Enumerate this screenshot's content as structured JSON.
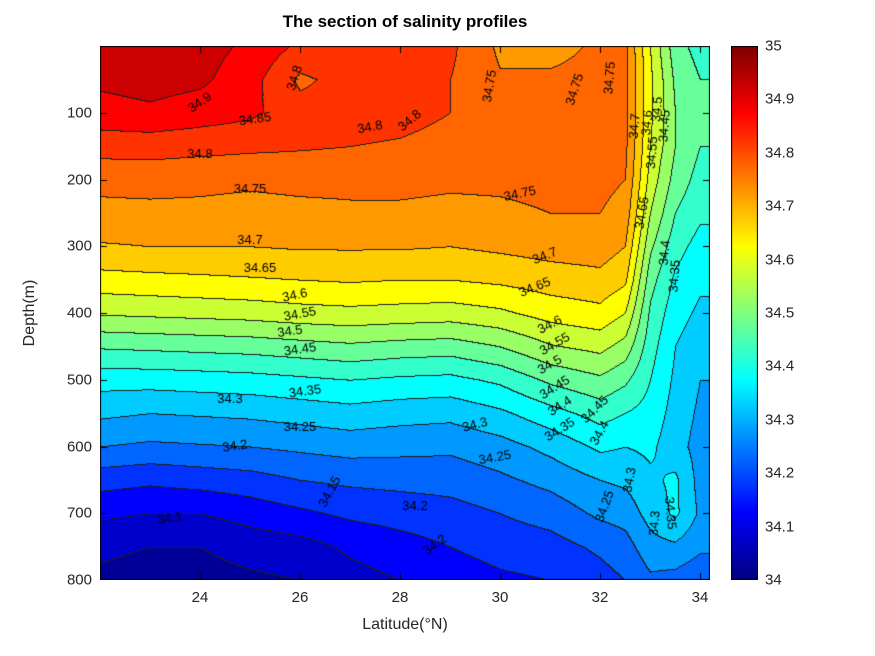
{
  "chart_data": {
    "type": "heatmap",
    "subtype": "filled-contour-section",
    "title": "The section of salinity profiles",
    "xlabel": "Latitude(°N)",
    "ylabel": "Depth(m)",
    "x_range": [
      22,
      34.2
    ],
    "y_range": [
      0,
      800
    ],
    "x_ticks": [
      24,
      26,
      28,
      30,
      32,
      34
    ],
    "y_ticks": [
      100,
      200,
      300,
      400,
      500,
      600,
      700,
      800
    ],
    "colormap": "jet",
    "contour_interval": 0.05,
    "colorbar": {
      "min": 34,
      "max": 35,
      "tick_labels": [
        "34",
        "34.1",
        "34.2",
        "34.3",
        "34.4",
        "34.5",
        "34.6",
        "34.7",
        "34.8",
        "34.9",
        "35"
      ]
    },
    "grid": {
      "lats": [
        22,
        23,
        24,
        25,
        26,
        27,
        28,
        29,
        30,
        31,
        32,
        32.5,
        33,
        33.5,
        34
      ],
      "depths": [
        0,
        50,
        100,
        150,
        200,
        250,
        300,
        350,
        400,
        450,
        500,
        550,
        600,
        650,
        700,
        750,
        800
      ],
      "salinity": [
        [
          34.91,
          34.93,
          34.92,
          34.89,
          34.84,
          34.85,
          34.84,
          34.81,
          34.74,
          34.74,
          34.755,
          34.76,
          34.6,
          34.47,
          34.43
        ],
        [
          34.91,
          34.92,
          34.91,
          34.87,
          34.79,
          34.82,
          34.83,
          34.8,
          34.755,
          34.755,
          34.76,
          34.76,
          34.61,
          34.49,
          34.45
        ],
        [
          34.88,
          34.89,
          34.875,
          34.86,
          34.82,
          34.82,
          34.815,
          34.8,
          34.785,
          34.775,
          34.77,
          34.76,
          34.61,
          34.5,
          34.46
        ],
        [
          34.82,
          34.82,
          34.815,
          34.81,
          34.805,
          34.8,
          34.795,
          34.785,
          34.775,
          34.775,
          34.77,
          34.76,
          34.6,
          34.5,
          34.45
        ],
        [
          34.765,
          34.77,
          34.765,
          34.76,
          34.765,
          34.765,
          34.765,
          34.76,
          34.76,
          34.765,
          34.765,
          34.75,
          34.58,
          34.48,
          34.43
        ],
        [
          34.735,
          34.735,
          34.735,
          34.73,
          34.735,
          34.74,
          34.74,
          34.735,
          34.74,
          34.75,
          34.75,
          34.73,
          34.55,
          34.45,
          34.41
        ],
        [
          34.695,
          34.7,
          34.7,
          34.7,
          34.705,
          34.705,
          34.705,
          34.7,
          34.71,
          34.72,
          34.725,
          34.7,
          34.51,
          34.42,
          34.38
        ],
        [
          34.63,
          34.635,
          34.64,
          34.645,
          34.65,
          34.655,
          34.65,
          34.65,
          34.66,
          34.675,
          34.685,
          34.66,
          34.47,
          34.39,
          34.36
        ],
        [
          34.555,
          34.56,
          34.565,
          34.57,
          34.58,
          34.585,
          34.58,
          34.575,
          34.59,
          34.62,
          34.635,
          34.6,
          34.44,
          34.37,
          34.34
        ],
        [
          34.455,
          34.46,
          34.465,
          34.47,
          34.48,
          34.49,
          34.48,
          34.475,
          34.5,
          34.545,
          34.565,
          34.53,
          34.42,
          34.35,
          34.32
        ],
        [
          34.37,
          34.37,
          34.375,
          34.38,
          34.39,
          34.4,
          34.39,
          34.385,
          34.41,
          34.46,
          34.49,
          34.46,
          34.4,
          34.34,
          34.3
        ],
        [
          34.31,
          34.3,
          34.305,
          34.31,
          34.32,
          34.33,
          34.32,
          34.315,
          34.34,
          34.38,
          34.42,
          34.4,
          34.38,
          34.33,
          34.29
        ],
        [
          34.25,
          34.24,
          34.245,
          34.25,
          34.26,
          34.27,
          34.265,
          34.26,
          34.28,
          34.315,
          34.36,
          34.35,
          34.36,
          34.32,
          34.28
        ],
        [
          34.17,
          34.16,
          34.17,
          34.18,
          34.2,
          34.21,
          34.215,
          34.22,
          34.24,
          34.265,
          34.3,
          34.31,
          34.34,
          34.36,
          34.28
        ],
        [
          34.11,
          34.1,
          34.1,
          34.12,
          34.14,
          34.16,
          34.17,
          34.18,
          34.2,
          34.22,
          34.26,
          34.27,
          34.32,
          34.36,
          34.29
        ],
        [
          34.06,
          34.05,
          34.05,
          34.07,
          34.08,
          34.11,
          34.13,
          34.15,
          34.17,
          34.18,
          34.21,
          34.23,
          34.28,
          34.29,
          34.26
        ],
        [
          34.04,
          34.03,
          34.03,
          34.04,
          34.05,
          34.08,
          34.1,
          34.12,
          34.14,
          34.15,
          34.18,
          34.2,
          34.24,
          34.23,
          34.21
        ]
      ]
    },
    "contour_labels": [
      {
        "text": "34.9",
        "lat": 24.0,
        "depth": 85,
        "rot": -35
      },
      {
        "text": "34.8",
        "lat": 25.9,
        "depth": 48,
        "rot": -72
      },
      {
        "text": "34.85",
        "lat": 25.1,
        "depth": 110,
        "rot": -8
      },
      {
        "text": "34.8",
        "lat": 24.0,
        "depth": 163,
        "rot": 0
      },
      {
        "text": "34.8",
        "lat": 27.4,
        "depth": 122,
        "rot": -10
      },
      {
        "text": "34.8",
        "lat": 28.2,
        "depth": 112,
        "rot": -40
      },
      {
        "text": "34.75",
        "lat": 29.8,
        "depth": 60,
        "rot": -80
      },
      {
        "text": "34.75",
        "lat": 31.5,
        "depth": 65,
        "rot": -72
      },
      {
        "text": "34.75",
        "lat": 32.2,
        "depth": 48,
        "rot": -85
      },
      {
        "text": "34.75",
        "lat": 25.0,
        "depth": 215,
        "rot": 0
      },
      {
        "text": "34.75",
        "lat": 30.4,
        "depth": 222,
        "rot": -12
      },
      {
        "text": "34.7",
        "lat": 25.0,
        "depth": 292,
        "rot": 0
      },
      {
        "text": "34.7",
        "lat": 30.9,
        "depth": 315,
        "rot": -22
      },
      {
        "text": "34.65",
        "lat": 25.2,
        "depth": 333,
        "rot": 0
      },
      {
        "text": "34.65",
        "lat": 30.7,
        "depth": 362,
        "rot": -22
      },
      {
        "text": "34.6",
        "lat": 25.9,
        "depth": 374,
        "rot": -12
      },
      {
        "text": "34.6",
        "lat": 31.0,
        "depth": 418,
        "rot": -28
      },
      {
        "text": "34.55",
        "lat": 26.0,
        "depth": 402,
        "rot": -10
      },
      {
        "text": "34.55",
        "lat": 31.1,
        "depth": 447,
        "rot": -30
      },
      {
        "text": "34.5",
        "lat": 25.8,
        "depth": 428,
        "rot": -8
      },
      {
        "text": "34.5",
        "lat": 31.0,
        "depth": 478,
        "rot": -30
      },
      {
        "text": "34.45",
        "lat": 26.0,
        "depth": 455,
        "rot": -8
      },
      {
        "text": "34.45",
        "lat": 31.1,
        "depth": 512,
        "rot": -32
      },
      {
        "text": "34.4",
        "lat": 31.2,
        "depth": 540,
        "rot": -32
      },
      {
        "text": "34.35",
        "lat": 26.1,
        "depth": 518,
        "rot": -8
      },
      {
        "text": "34.35",
        "lat": 31.2,
        "depth": 575,
        "rot": -32
      },
      {
        "text": "34.3",
        "lat": 24.6,
        "depth": 530,
        "rot": 0
      },
      {
        "text": "34.3",
        "lat": 29.5,
        "depth": 568,
        "rot": -15
      },
      {
        "text": "34.25",
        "lat": 26.0,
        "depth": 572,
        "rot": 0
      },
      {
        "text": "34.25",
        "lat": 29.9,
        "depth": 617,
        "rot": -10
      },
      {
        "text": "34.2",
        "lat": 24.7,
        "depth": 600,
        "rot": -8
      },
      {
        "text": "34.2",
        "lat": 28.3,
        "depth": 690,
        "rot": 0
      },
      {
        "text": "34.15",
        "lat": 26.6,
        "depth": 668,
        "rot": -62
      },
      {
        "text": "34.2",
        "lat": 28.7,
        "depth": 748,
        "rot": -35
      },
      {
        "text": "34.1",
        "lat": 23.4,
        "depth": 708,
        "rot": -10
      },
      {
        "text": "34.25",
        "lat": 32.1,
        "depth": 690,
        "rot": -70
      },
      {
        "text": "34.3",
        "lat": 32.6,
        "depth": 650,
        "rot": -80
      },
      {
        "text": "34.3",
        "lat": 33.1,
        "depth": 715,
        "rot": -85
      },
      {
        "text": "34.35",
        "lat": 33.4,
        "depth": 700,
        "rot": 85
      },
      {
        "text": "34.4",
        "lat": 33.3,
        "depth": 310,
        "rot": -85
      },
      {
        "text": "34.35",
        "lat": 33.5,
        "depth": 345,
        "rot": -85
      },
      {
        "text": "34.45",
        "lat": 33.3,
        "depth": 120,
        "rot": -85
      },
      {
        "text": "34.5",
        "lat": 33.15,
        "depth": 95,
        "rot": -85
      },
      {
        "text": "34.55",
        "lat": 33.05,
        "depth": 160,
        "rot": -85
      },
      {
        "text": "34.6",
        "lat": 32.95,
        "depth": 115,
        "rot": -85
      },
      {
        "text": "34.65",
        "lat": 32.85,
        "depth": 250,
        "rot": -80
      },
      {
        "text": "34.7",
        "lat": 32.7,
        "depth": 120,
        "rot": -85
      },
      {
        "text": "34.45",
        "lat": 31.9,
        "depth": 545,
        "rot": -45
      },
      {
        "text": "34.4",
        "lat": 32.0,
        "depth": 580,
        "rot": -60
      }
    ]
  }
}
